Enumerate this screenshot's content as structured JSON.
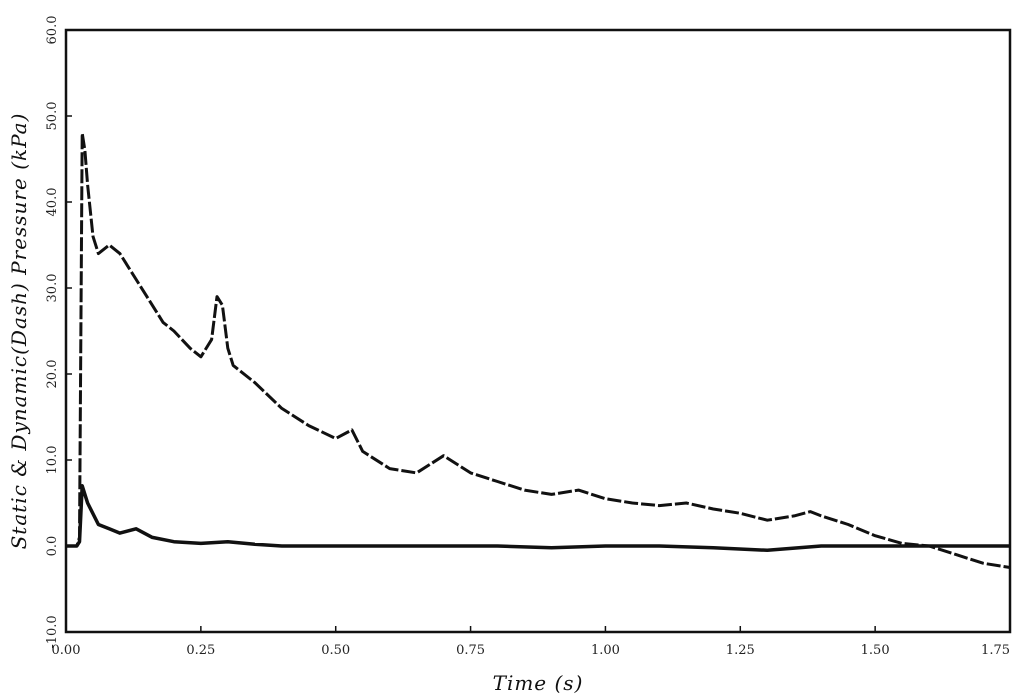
{
  "chart_data": {
    "type": "line",
    "title": "",
    "xlabel": "Time (s)",
    "ylabel": "Static & Dynamic(Dash) Pressure (kPa)",
    "xlim": [
      0.0,
      1.75
    ],
    "ylim": [
      -100,
      600
    ],
    "x_ticks": [
      0.0,
      0.25,
      0.5,
      0.75,
      1.0,
      1.25,
      1.5,
      1.75
    ],
    "x_tick_labels": [
      "0.00",
      "0.25",
      "0.50",
      "0.75",
      "1.00",
      "1.25",
      "1.50",
      "1.75"
    ],
    "y_ticks": [
      -100,
      0,
      100,
      200,
      300,
      400,
      500,
      600
    ],
    "y_tick_labels": [
      "-10.0",
      "0.0",
      "10.0",
      "20.0",
      "30.0",
      "40.0",
      "50.0",
      "60.0"
    ],
    "grid": false,
    "series": [
      {
        "name": "",
        "color": "#111111",
        "style": "dash",
        "x": [
          0.0,
          0.02,
          0.025,
          0.03,
          0.035,
          0.04,
          0.05,
          0.06,
          0.08,
          0.1,
          0.12,
          0.15,
          0.18,
          0.2,
          0.23,
          0.25,
          0.27,
          0.28,
          0.29,
          0.3,
          0.31,
          0.35,
          0.4,
          0.45,
          0.5,
          0.53,
          0.55,
          0.6,
          0.65,
          0.7,
          0.75,
          0.8,
          0.85,
          0.9,
          0.95,
          1.0,
          1.05,
          1.1,
          1.15,
          1.2,
          1.25,
          1.3,
          1.35,
          1.38,
          1.4,
          1.45,
          1.5,
          1.55,
          1.6,
          1.65,
          1.7,
          1.75
        ],
        "y": [
          0,
          0,
          10,
          480,
          460,
          420,
          360,
          340,
          350,
          340,
          320,
          290,
          260,
          250,
          230,
          220,
          240,
          290,
          280,
          230,
          210,
          190,
          160,
          140,
          125,
          135,
          110,
          90,
          85,
          105,
          85,
          75,
          65,
          60,
          65,
          55,
          50,
          47,
          50,
          43,
          38,
          30,
          35,
          40,
          35,
          25,
          12,
          3,
          0,
          -10,
          -20,
          -25
        ]
      },
      {
        "name": "",
        "color": "#111111",
        "style": "solid",
        "x": [
          0.0,
          0.02,
          0.025,
          0.03,
          0.04,
          0.06,
          0.08,
          0.1,
          0.13,
          0.16,
          0.2,
          0.25,
          0.3,
          0.35,
          0.4,
          0.5,
          0.6,
          0.7,
          0.8,
          0.9,
          1.0,
          1.1,
          1.2,
          1.3,
          1.4,
          1.5,
          1.6,
          1.7,
          1.75
        ],
        "y": [
          0,
          0,
          5,
          70,
          50,
          25,
          20,
          15,
          20,
          10,
          5,
          3,
          5,
          2,
          0,
          0,
          0,
          0,
          0,
          -2,
          0,
          0,
          -2,
          -5,
          0,
          0,
          0,
          0,
          0
        ]
      }
    ]
  }
}
